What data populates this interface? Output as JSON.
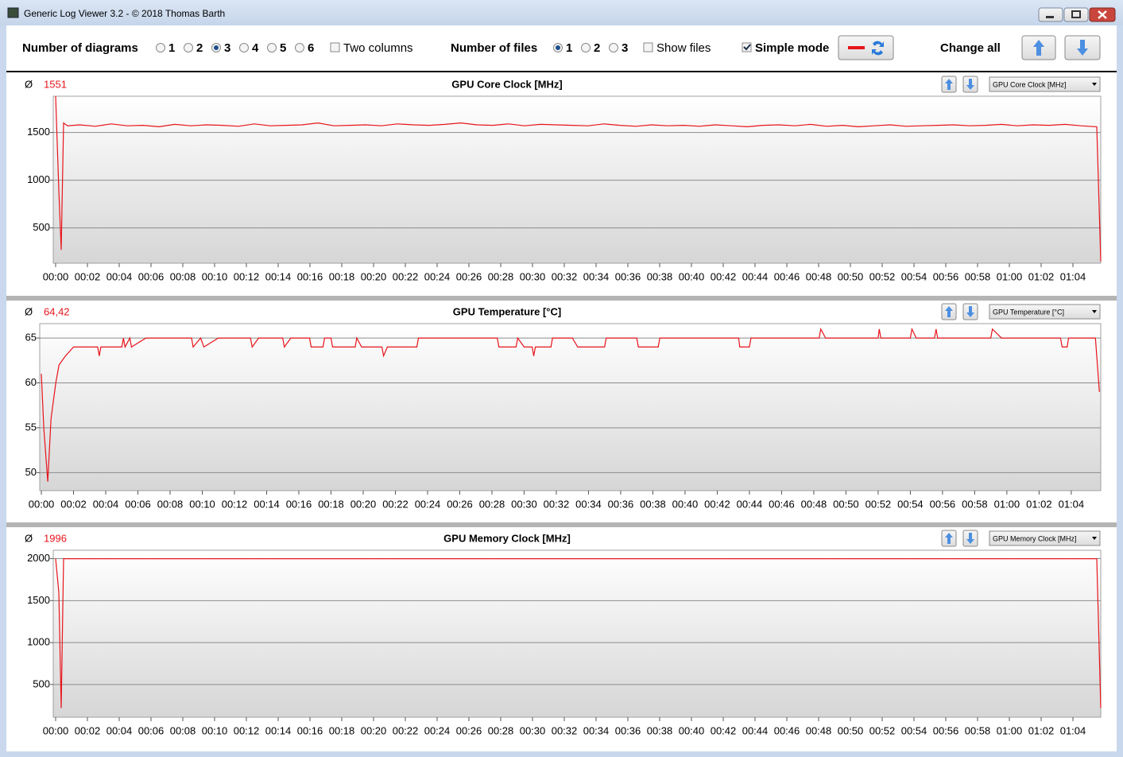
{
  "window": {
    "title": "Generic Log Viewer 3.2 - © 2018 Thomas Barth"
  },
  "toolbar": {
    "diagrams": {
      "label": "Number of diagrams",
      "options": [
        {
          "label": "1",
          "selected": false
        },
        {
          "label": "2",
          "selected": false
        },
        {
          "label": "3",
          "selected": true
        },
        {
          "label": "4",
          "selected": false
        },
        {
          "label": "5",
          "selected": false
        },
        {
          "label": "6",
          "selected": false
        }
      ]
    },
    "two_columns": {
      "label": "Two columns",
      "checked": false
    },
    "files": {
      "label": "Number of files",
      "options": [
        {
          "label": "1",
          "selected": true
        },
        {
          "label": "2",
          "selected": false
        },
        {
          "label": "3",
          "selected": false
        }
      ]
    },
    "show_files": {
      "label": "Show files",
      "checked": false
    },
    "simple_mode": {
      "label": "Simple mode",
      "checked": true
    },
    "change_all": "Change all"
  },
  "chart_data": [
    {
      "type": "line",
      "title": "GPU Core Clock [MHz]",
      "selector": "GPU Core Clock [MHz]",
      "avg_symbol": "Ø",
      "average": "1551",
      "grid": true,
      "xlim": [
        -9,
        3945
      ],
      "ylim": [
        130,
        1880
      ],
      "yticks": [
        500,
        1000,
        1500
      ],
      "xticks": [
        {
          "value": 0,
          "label": "00:00"
        },
        {
          "value": 120,
          "label": "00:02"
        },
        {
          "value": 240,
          "label": "00:04"
        },
        {
          "value": 360,
          "label": "00:06"
        },
        {
          "value": 480,
          "label": "00:08"
        },
        {
          "value": 600,
          "label": "00:10"
        },
        {
          "value": 720,
          "label": "00:12"
        },
        {
          "value": 840,
          "label": "00:14"
        },
        {
          "value": 960,
          "label": "00:16"
        },
        {
          "value": 1080,
          "label": "00:18"
        },
        {
          "value": 1200,
          "label": "00:20"
        },
        {
          "value": 1320,
          "label": "00:22"
        },
        {
          "value": 1440,
          "label": "00:24"
        },
        {
          "value": 1560,
          "label": "00:26"
        },
        {
          "value": 1680,
          "label": "00:28"
        },
        {
          "value": 1800,
          "label": "00:30"
        },
        {
          "value": 1920,
          "label": "00:32"
        },
        {
          "value": 2040,
          "label": "00:34"
        },
        {
          "value": 2160,
          "label": "00:36"
        },
        {
          "value": 2280,
          "label": "00:38"
        },
        {
          "value": 2400,
          "label": "00:40"
        },
        {
          "value": 2520,
          "label": "00:42"
        },
        {
          "value": 2640,
          "label": "00:44"
        },
        {
          "value": 2760,
          "label": "00:46"
        },
        {
          "value": 2880,
          "label": "00:48"
        },
        {
          "value": 3000,
          "label": "00:50"
        },
        {
          "value": 3120,
          "label": "00:52"
        },
        {
          "value": 3240,
          "label": "00:54"
        },
        {
          "value": 3360,
          "label": "00:56"
        },
        {
          "value": 3480,
          "label": "00:58"
        },
        {
          "value": 3600,
          "label": "01:00"
        },
        {
          "value": 3720,
          "label": "01:02"
        },
        {
          "value": 3840,
          "label": "01:04"
        }
      ],
      "x": [
        0,
        12,
        21,
        30,
        45,
        90,
        150,
        210,
        270,
        330,
        390,
        450,
        510,
        570,
        630,
        690,
        750,
        810,
        870,
        930,
        990,
        1050,
        1110,
        1170,
        1230,
        1290,
        1350,
        1410,
        1470,
        1530,
        1590,
        1650,
        1710,
        1770,
        1830,
        1890,
        1950,
        2010,
        2070,
        2130,
        2190,
        2250,
        2310,
        2370,
        2430,
        2490,
        2550,
        2610,
        2670,
        2730,
        2790,
        2850,
        2910,
        2970,
        3030,
        3090,
        3150,
        3210,
        3270,
        3330,
        3390,
        3450,
        3510,
        3570,
        3630,
        3690,
        3750,
        3810,
        3870,
        3930,
        3945
      ],
      "series": [
        {
          "color": "#e8141b",
          "values": [
            1880,
            900,
            270,
            1600,
            1570,
            1580,
            1565,
            1590,
            1570,
            1575,
            1560,
            1585,
            1570,
            1580,
            1575,
            1565,
            1590,
            1570,
            1575,
            1580,
            1600,
            1570,
            1575,
            1580,
            1570,
            1590,
            1580,
            1575,
            1585,
            1600,
            1580,
            1575,
            1590,
            1570,
            1585,
            1580,
            1575,
            1570,
            1590,
            1575,
            1565,
            1580,
            1570,
            1575,
            1565,
            1580,
            1570,
            1560,
            1575,
            1580,
            1570,
            1585,
            1565,
            1575,
            1560,
            1570,
            1580,
            1565,
            1570,
            1575,
            1580,
            1570,
            1575,
            1585,
            1570,
            1580,
            1575,
            1585,
            1570,
            1560,
            150
          ]
        }
      ]
    },
    {
      "type": "line",
      "title": "GPU Temperature [°C]",
      "selector": "GPU Temperature [°C]",
      "avg_symbol": "Ø",
      "average": "64,42",
      "grid": true,
      "xlim": [
        -6,
        3950
      ],
      "ylim": [
        48,
        66.6
      ],
      "yticks": [
        50,
        55,
        60,
        65
      ],
      "xticks": [
        {
          "value": 0,
          "label": "00:00"
        },
        {
          "value": 120,
          "label": "00:02"
        },
        {
          "value": 240,
          "label": "00:04"
        },
        {
          "value": 360,
          "label": "00:06"
        },
        {
          "value": 480,
          "label": "00:08"
        },
        {
          "value": 600,
          "label": "00:10"
        },
        {
          "value": 720,
          "label": "00:12"
        },
        {
          "value": 840,
          "label": "00:14"
        },
        {
          "value": 960,
          "label": "00:16"
        },
        {
          "value": 1080,
          "label": "00:18"
        },
        {
          "value": 1200,
          "label": "00:20"
        },
        {
          "value": 1320,
          "label": "00:22"
        },
        {
          "value": 1440,
          "label": "00:24"
        },
        {
          "value": 1560,
          "label": "00:26"
        },
        {
          "value": 1680,
          "label": "00:28"
        },
        {
          "value": 1800,
          "label": "00:30"
        },
        {
          "value": 1920,
          "label": "00:32"
        },
        {
          "value": 2040,
          "label": "00:34"
        },
        {
          "value": 2160,
          "label": "00:36"
        },
        {
          "value": 2280,
          "label": "00:38"
        },
        {
          "value": 2400,
          "label": "00:40"
        },
        {
          "value": 2520,
          "label": "00:42"
        },
        {
          "value": 2640,
          "label": "00:44"
        },
        {
          "value": 2760,
          "label": "00:46"
        },
        {
          "value": 2880,
          "label": "00:48"
        },
        {
          "value": 3000,
          "label": "00:50"
        },
        {
          "value": 3120,
          "label": "00:52"
        },
        {
          "value": 3240,
          "label": "00:54"
        },
        {
          "value": 3360,
          "label": "00:56"
        },
        {
          "value": 3480,
          "label": "00:58"
        },
        {
          "value": 3600,
          "label": "01:00"
        },
        {
          "value": 3720,
          "label": "01:02"
        },
        {
          "value": 3840,
          "label": "01:04"
        }
      ],
      "x": [
        0,
        9,
        24,
        36,
        54,
        66,
        90,
        120,
        210,
        216,
        222,
        300,
        306,
        312,
        330,
        336,
        390,
        560,
        566,
        594,
        606,
        660,
        780,
        786,
        810,
        900,
        906,
        930,
        1000,
        1006,
        1050,
        1056,
        1080,
        1086,
        1170,
        1176,
        1194,
        1270,
        1276,
        1290,
        1400,
        1406,
        1700,
        1706,
        1770,
        1776,
        1800,
        1830,
        1836,
        1842,
        1900,
        1906,
        1980,
        2000,
        2100,
        2106,
        2220,
        2226,
        2300,
        2306,
        2510,
        2600,
        2604,
        2640,
        2646,
        2900,
        2906,
        2924,
        3120,
        3124,
        3130,
        3240,
        3246,
        3262,
        3330,
        3336,
        3342,
        3540,
        3546,
        3580,
        3800,
        3806,
        3825,
        3830,
        3930,
        3945
      ],
      "series": [
        {
          "color": "#e8141b",
          "values": [
            61,
            55,
            49,
            56,
            60,
            62,
            63,
            64,
            64,
            63,
            64,
            64,
            65,
            64,
            65,
            64,
            65,
            65,
            64,
            65,
            64,
            65,
            65,
            64,
            65,
            65,
            64,
            65,
            65,
            64,
            64,
            65,
            65,
            64,
            64,
            65,
            64,
            64,
            63,
            64,
            64,
            65,
            65,
            64,
            64,
            65,
            64,
            64,
            63,
            64,
            64,
            65,
            65,
            64,
            64,
            65,
            65,
            64,
            64,
            65,
            65,
            65,
            64,
            64,
            65,
            65,
            66,
            65,
            65,
            66,
            65,
            65,
            66,
            65,
            65,
            66,
            65,
            65,
            66,
            65,
            65,
            64,
            64,
            65,
            65,
            59
          ]
        }
      ]
    },
    {
      "type": "line",
      "title": "GPU Memory Clock [MHz]",
      "selector": "GPU Memory Clock [MHz]",
      "avg_symbol": "Ø",
      "average": "1996",
      "grid": true,
      "xlim": [
        -9,
        3945
      ],
      "ylim": [
        110,
        2100
      ],
      "yticks": [
        500,
        1000,
        1500,
        2000
      ],
      "xticks": [
        {
          "value": 0,
          "label": "00:00"
        },
        {
          "value": 120,
          "label": "00:02"
        },
        {
          "value": 240,
          "label": "00:04"
        },
        {
          "value": 360,
          "label": "00:06"
        },
        {
          "value": 480,
          "label": "00:08"
        },
        {
          "value": 600,
          "label": "00:10"
        },
        {
          "value": 720,
          "label": "00:12"
        },
        {
          "value": 840,
          "label": "00:14"
        },
        {
          "value": 960,
          "label": "00:16"
        },
        {
          "value": 1080,
          "label": "00:18"
        },
        {
          "value": 1200,
          "label": "00:20"
        },
        {
          "value": 1320,
          "label": "00:22"
        },
        {
          "value": 1440,
          "label": "00:24"
        },
        {
          "value": 1560,
          "label": "00:26"
        },
        {
          "value": 1680,
          "label": "00:28"
        },
        {
          "value": 1800,
          "label": "00:30"
        },
        {
          "value": 1920,
          "label": "00:32"
        },
        {
          "value": 2040,
          "label": "00:34"
        },
        {
          "value": 2160,
          "label": "00:36"
        },
        {
          "value": 2280,
          "label": "00:38"
        },
        {
          "value": 2400,
          "label": "00:40"
        },
        {
          "value": 2520,
          "label": "00:42"
        },
        {
          "value": 2640,
          "label": "00:44"
        },
        {
          "value": 2760,
          "label": "00:46"
        },
        {
          "value": 2880,
          "label": "00:48"
        },
        {
          "value": 3000,
          "label": "00:50"
        },
        {
          "value": 3120,
          "label": "00:52"
        },
        {
          "value": 3240,
          "label": "00:54"
        },
        {
          "value": 3360,
          "label": "00:56"
        },
        {
          "value": 3480,
          "label": "00:58"
        },
        {
          "value": 3600,
          "label": "01:00"
        },
        {
          "value": 3720,
          "label": "01:02"
        },
        {
          "value": 3840,
          "label": "01:04"
        }
      ],
      "x": [
        0,
        12,
        21,
        30,
        3930,
        3945
      ],
      "series": [
        {
          "color": "#e8141b",
          "values": [
            2000,
            1600,
            220,
            2000,
            2000,
            220
          ]
        }
      ]
    }
  ]
}
